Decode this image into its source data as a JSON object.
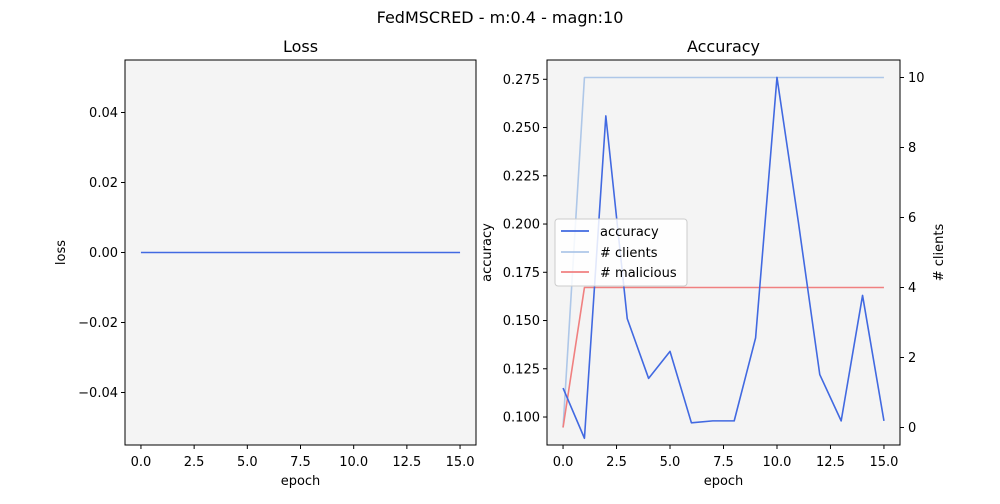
{
  "figure": {
    "suptitle": "FedMSCRED - m:0.4 - magn:10"
  },
  "chart_data": [
    {
      "type": "line",
      "title": "Loss",
      "xlabel": "epoch",
      "ylabel": "loss",
      "xlim": [
        -0.75,
        15.75
      ],
      "ylim": [
        -0.055,
        0.055
      ],
      "xticks": [
        0.0,
        2.5,
        5.0,
        7.5,
        10.0,
        12.5,
        15.0
      ],
      "xtick_labels": [
        "0.0",
        "2.5",
        "5.0",
        "7.5",
        "10.0",
        "12.5",
        "15.0"
      ],
      "yticks": [
        -0.04,
        -0.02,
        0.0,
        0.02,
        0.04
      ],
      "ytick_labels": [
        "−0.04",
        "−0.02",
        "0.00",
        "0.02",
        "0.04"
      ],
      "grid": false,
      "background": "#f4f4f4",
      "series": [
        {
          "color": "#4169e1",
          "x": [
            0,
            1,
            2,
            3,
            4,
            5,
            6,
            7,
            8,
            9,
            10,
            11,
            12,
            13,
            14,
            15
          ],
          "y": [
            0,
            0,
            0,
            0,
            0,
            0,
            0,
            0,
            0,
            0,
            0,
            0,
            0,
            0,
            0,
            0
          ]
        }
      ]
    },
    {
      "type": "line",
      "title": "Accuracy",
      "xlabel": "epoch",
      "ylabel": "accuracy",
      "y2label": "# clients",
      "xlim": [
        -0.75,
        15.75
      ],
      "ylim": [
        0.0855,
        0.285
      ],
      "y2lim": [
        -0.5,
        10.5
      ],
      "xticks": [
        0.0,
        2.5,
        5.0,
        7.5,
        10.0,
        12.5,
        15.0
      ],
      "xtick_labels": [
        "0.0",
        "2.5",
        "5.0",
        "7.5",
        "10.0",
        "12.5",
        "15.0"
      ],
      "yticks": [
        0.1,
        0.125,
        0.15,
        0.175,
        0.2,
        0.225,
        0.25,
        0.275
      ],
      "ytick_labels": [
        "0.100",
        "0.125",
        "0.150",
        "0.175",
        "0.200",
        "0.225",
        "0.250",
        "0.275"
      ],
      "y2ticks": [
        0,
        2,
        4,
        6,
        8,
        10
      ],
      "y2tick_labels": [
        "0",
        "2",
        "4",
        "6",
        "8",
        "10"
      ],
      "grid": false,
      "background": "#f4f4f4",
      "legend": "center-left",
      "series": [
        {
          "name": "accuracy",
          "axis": "left",
          "color": "#4169e1",
          "x": [
            0,
            1,
            2,
            3,
            4,
            5,
            6,
            7,
            8,
            9,
            10,
            11,
            12,
            13,
            14,
            15
          ],
          "y": [
            0.115,
            0.089,
            0.256,
            0.151,
            0.12,
            0.134,
            0.097,
            0.098,
            0.098,
            0.141,
            0.276,
            0.201,
            0.122,
            0.098,
            0.163,
            0.098
          ]
        },
        {
          "name": "# clients",
          "axis": "right",
          "color": "#aec7e8",
          "x": [
            0,
            1,
            2,
            3,
            4,
            5,
            6,
            7,
            8,
            9,
            10,
            11,
            12,
            13,
            14,
            15
          ],
          "y": [
            0,
            10,
            10,
            10,
            10,
            10,
            10,
            10,
            10,
            10,
            10,
            10,
            10,
            10,
            10,
            10
          ]
        },
        {
          "name": "# malicious",
          "axis": "right",
          "color": "#f08080",
          "x": [
            0,
            1,
            2,
            3,
            4,
            5,
            6,
            7,
            8,
            9,
            10,
            11,
            12,
            13,
            14,
            15
          ],
          "y": [
            0,
            4,
            4,
            4,
            4,
            4,
            4,
            4,
            4,
            4,
            4,
            4,
            4,
            4,
            4,
            4
          ]
        }
      ]
    }
  ]
}
